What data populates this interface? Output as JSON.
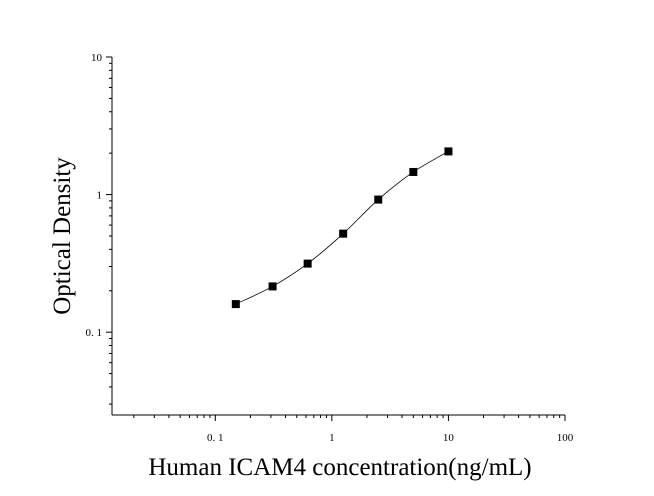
{
  "chart_data": {
    "type": "scatter",
    "title": "",
    "xlabel": "Human ICAM4 concentration(ng/mL)",
    "ylabel": "Optical Density",
    "xscale": "log",
    "yscale": "log",
    "xlim": [
      0.013,
      100
    ],
    "ylim": [
      0.025,
      10
    ],
    "x_ticks": [
      {
        "value": 0.1,
        "label": "0. 1"
      },
      {
        "value": 1,
        "label": "1"
      },
      {
        "value": 10,
        "label": "10"
      },
      {
        "value": 100,
        "label": "100"
      }
    ],
    "y_ticks": [
      {
        "value": 0.1,
        "label": "0. 1"
      },
      {
        "value": 1,
        "label": "1"
      },
      {
        "value": 10,
        "label": "10"
      }
    ],
    "grid": false,
    "marker": "square",
    "fit_curve": true,
    "x": [
      0.15,
      0.31,
      0.62,
      1.25,
      2.5,
      5,
      10
    ],
    "y": [
      0.16,
      0.215,
      0.315,
      0.52,
      0.92,
      1.46,
      2.06
    ],
    "colors": {
      "marker": "#000000",
      "line": "#000000",
      "axis": "#000000"
    }
  }
}
